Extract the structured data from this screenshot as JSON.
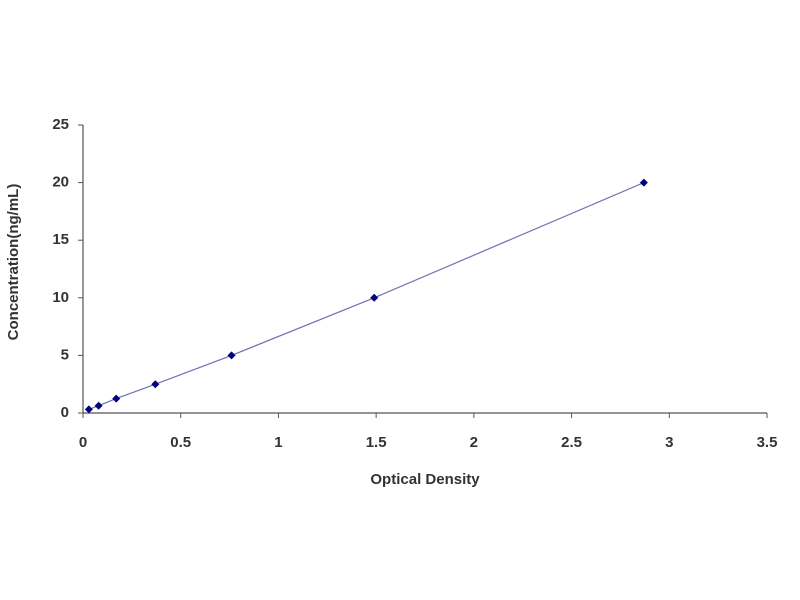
{
  "chart_data": {
    "type": "line",
    "x_label": "Optical Density",
    "y_label": "Concentration(ng/mL)",
    "x": [
      0.03,
      0.08,
      0.17,
      0.37,
      0.76,
      1.49,
      2.87
    ],
    "values": [
      0.31,
      0.63,
      1.25,
      2.5,
      5,
      10,
      20
    ],
    "color": "#7070b0",
    "marker_color": "#000080",
    "xlim": [
      0,
      3.5
    ],
    "xticks": [
      0,
      0.5,
      1,
      1.5,
      2,
      2.5,
      3,
      3.5
    ],
    "ylim": [
      0,
      25
    ],
    "yticks": [
      0,
      5,
      10,
      15,
      20,
      25
    ],
    "grid": false
  }
}
